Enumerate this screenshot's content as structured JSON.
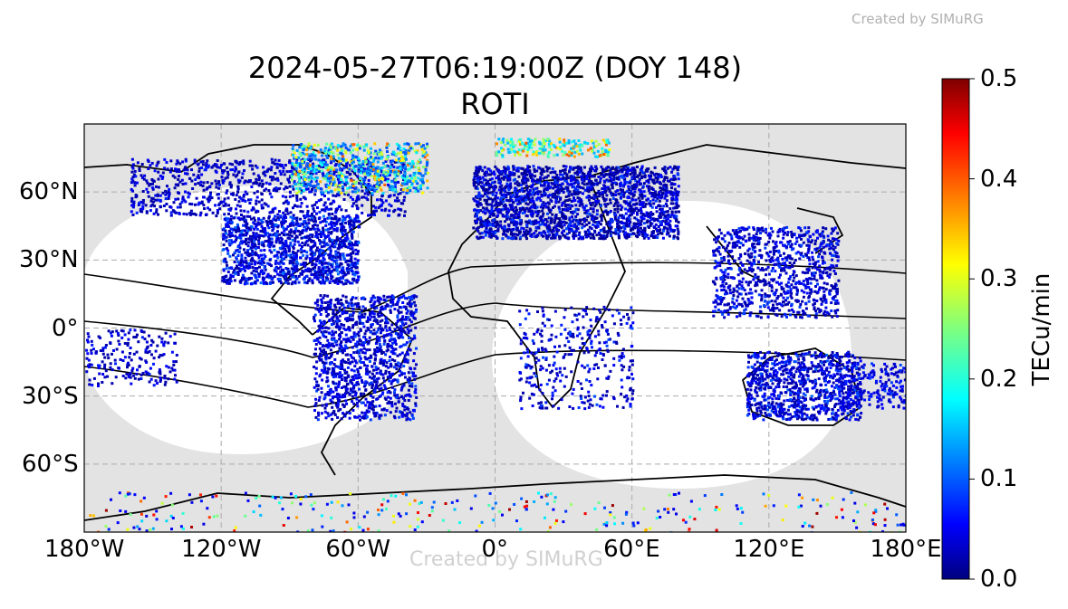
{
  "watermark": "Created by SIMuRG",
  "title": {
    "line1": "2024-05-27T06:19:00Z (DOY 148)",
    "line2": "ROTI"
  },
  "map": {
    "projection": "equirectangular",
    "extent": {
      "lon": [
        -180,
        180
      ],
      "lat": [
        -90,
        90
      ]
    },
    "gridlines": true,
    "night_shading": true,
    "lon_ticks": [
      {
        "value": -180,
        "label": "180°W"
      },
      {
        "value": -120,
        "label": "120°W"
      },
      {
        "value": -60,
        "label": "60°W"
      },
      {
        "value": 0,
        "label": "0°"
      },
      {
        "value": 60,
        "label": "60°E"
      },
      {
        "value": 120,
        "label": "120°E"
      },
      {
        "value": 180,
        "label": "180°E"
      }
    ],
    "lat_ticks": [
      {
        "value": 60,
        "label": "60°N"
      },
      {
        "value": 30,
        "label": "30°N"
      },
      {
        "value": 0,
        "label": "0°"
      },
      {
        "value": -30,
        "label": "30°S"
      },
      {
        "value": -60,
        "label": "60°S"
      }
    ],
    "colors": {
      "night": "#e3e3e3",
      "grid": "#aaaaaa",
      "coast": "#000000"
    }
  },
  "colorbar": {
    "label": "TECu/min",
    "colormap": "jet",
    "min": 0.0,
    "max": 0.5,
    "ticks": [
      {
        "value": 0.0,
        "label": "0.0"
      },
      {
        "value": 0.1,
        "label": "0.1"
      },
      {
        "value": 0.2,
        "label": "0.2"
      },
      {
        "value": 0.3,
        "label": "0.3"
      },
      {
        "value": 0.4,
        "label": "0.4"
      },
      {
        "value": 0.5,
        "label": "0.5"
      }
    ]
  }
}
